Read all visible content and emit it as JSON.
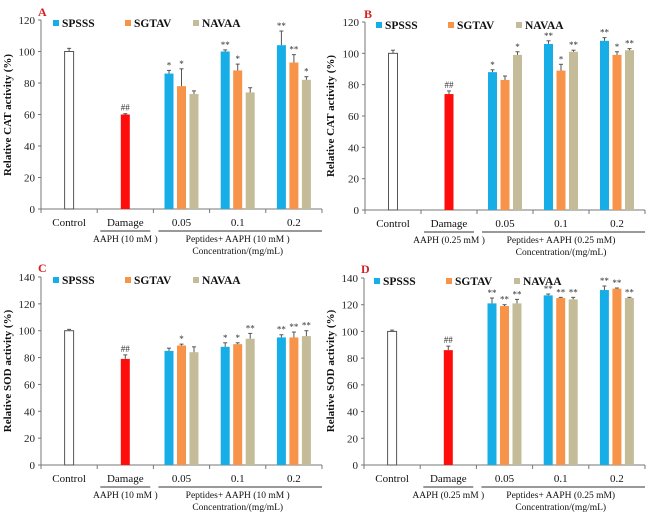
{
  "colors": {
    "control_fill": "#ffffff",
    "control_stroke": "#555555",
    "damage": "#ff0d0d",
    "SPSSS": "#17aee8",
    "SGTAV": "#f7944a",
    "NAVAA": "#c4bc98",
    "panel_label": "#d62020"
  },
  "chart_data": [
    {
      "type": "bar",
      "panel_label": "A",
      "ylabel": "Relative CAT activity (%)",
      "ylim": [
        0,
        120
      ],
      "yticks": [
        "0",
        "20",
        "40",
        "60",
        "80",
        "100",
        "120"
      ],
      "categories": [
        "Control",
        "Damage",
        "0.05",
        "0.1",
        "0.2"
      ],
      "damage_sublabel": "AAPH (10 mM )",
      "peptide_sublabel": "Peptides+ AAPH (10 mM )",
      "xlabel": "Concentration/(mg/mL)",
      "legend": [
        "SPSSS",
        "SGTAV",
        "NAVAA"
      ],
      "legend_position": "top",
      "control": {
        "value": 100,
        "err": 2
      },
      "damage": {
        "value": 60,
        "err": 0.5,
        "sig": "##"
      },
      "series": [
        {
          "name": "SPSSS",
          "values": [
            86,
            100,
            104
          ],
          "err": [
            2,
            1,
            9
          ],
          "sig": [
            "*",
            "**",
            "**"
          ]
        },
        {
          "name": "SGTAV",
          "values": [
            78,
            88,
            93
          ],
          "err": [
            11,
            4,
            5
          ],
          "sig": [
            "*",
            "*",
            "**"
          ]
        },
        {
          "name": "NAVAA",
          "values": [
            73,
            74,
            82
          ],
          "err": [
            2,
            3,
            2
          ],
          "sig": [
            "",
            "",
            "*"
          ]
        }
      ]
    },
    {
      "type": "bar",
      "panel_label": "B",
      "ylabel": "Relative CAT activity (%)",
      "ylim": [
        0,
        120
      ],
      "yticks": [
        "0",
        "20",
        "40",
        "60",
        "80",
        "100",
        "120"
      ],
      "categories": [
        "Control",
        "Damage",
        "0.05",
        "0.1",
        "0.2"
      ],
      "damage_sublabel": "AAPH (0.25 mM )",
      "peptide_sublabel": "Peptides+ AAPH (0.25 mM)",
      "xlabel": "Concentration/(mg/mL)",
      "legend": [
        "SPSSS",
        "SGTAV",
        "NAVAA"
      ],
      "legend_position": "top",
      "control": {
        "value": 100,
        "err": 2
      },
      "damage": {
        "value": 74,
        "err": 2,
        "sig": "##"
      },
      "series": [
        {
          "name": "SPSSS",
          "values": [
            88,
            106,
            108
          ],
          "err": [
            1.5,
            2,
            2
          ],
          "sig": [
            "*",
            "**",
            "**"
          ]
        },
        {
          "name": "SGTAV",
          "values": [
            83,
            89,
            99
          ],
          "err": [
            2.5,
            4,
            2
          ],
          "sig": [
            "",
            "*",
            "*"
          ]
        },
        {
          "name": "NAVAA",
          "values": [
            99,
            101,
            102
          ],
          "err": [
            2,
            1,
            1
          ],
          "sig": [
            "*",
            "**",
            "**"
          ]
        }
      ]
    },
    {
      "type": "bar",
      "panel_label": "C",
      "ylabel": "Relative SOD activity (%)",
      "ylim": [
        0,
        140
      ],
      "yticks": [
        "0",
        "20",
        "40",
        "60",
        "80",
        "100",
        "120",
        "140"
      ],
      "categories": [
        "Control",
        "Damage",
        "0.05",
        "0.1",
        "0.2"
      ],
      "damage_sublabel": "AAPH (10 mM )",
      "peptide_sublabel": "Peptides+ AAPH (10 mM )",
      "xlabel": "Concentration/(mg/mL)",
      "legend": [
        "SPSSS",
        "SGTAV",
        "NAVAA"
      ],
      "legend_position": "top",
      "control": {
        "value": 100,
        "err": 1
      },
      "damage": {
        "value": 79,
        "err": 3,
        "sig": "##"
      },
      "series": [
        {
          "name": "SPSSS",
          "values": [
            85,
            88,
            95
          ],
          "err": [
            2,
            3,
            2
          ],
          "sig": [
            "",
            "*",
            "**"
          ]
        },
        {
          "name": "SGTAV",
          "values": [
            89,
            90,
            95
          ],
          "err": [
            1,
            1,
            4
          ],
          "sig": [
            "*",
            "*",
            "**"
          ]
        },
        {
          "name": "NAVAA",
          "values": [
            84,
            94,
            96
          ],
          "err": [
            4,
            4,
            4
          ],
          "sig": [
            "",
            "**",
            "**"
          ]
        }
      ]
    },
    {
      "type": "bar",
      "panel_label": "D",
      "ylabel": "Relative SOD activity (%)",
      "ylim": [
        0,
        140
      ],
      "yticks": [
        "0",
        "20",
        "40",
        "60",
        "80",
        "100",
        "120",
        "140"
      ],
      "categories": [
        "Control",
        "Damage",
        "0.05",
        "0.1",
        "0.2"
      ],
      "damage_sublabel": "AAPH (0.25 mM )",
      "peptide_sublabel": "Peptides+ AAPH (0.25 mM)",
      "xlabel": "Concentration/(mg/mL)",
      "legend": [
        "SPSSS",
        "SGTAV",
        "NAVAA"
      ],
      "legend_position": "top",
      "control": {
        "value": 100,
        "err": 1
      },
      "damage": {
        "value": 86,
        "err": 3,
        "sig": "##"
      },
      "series": [
        {
          "name": "SPSSS",
          "values": [
            121,
            127,
            131
          ],
          "err": [
            4,
            1,
            3
          ],
          "sig": [
            "**",
            "**",
            "**"
          ]
        },
        {
          "name": "SGTAV",
          "values": [
            119,
            125,
            132
          ],
          "err": [
            1,
            0.5,
            0.5
          ],
          "sig": [
            "**",
            "**",
            "**"
          ]
        },
        {
          "name": "NAVAA",
          "values": [
            121,
            124,
            125
          ],
          "err": [
            3,
            1.5,
            0.5
          ],
          "sig": [
            "**",
            "**",
            "**"
          ]
        }
      ]
    }
  ]
}
